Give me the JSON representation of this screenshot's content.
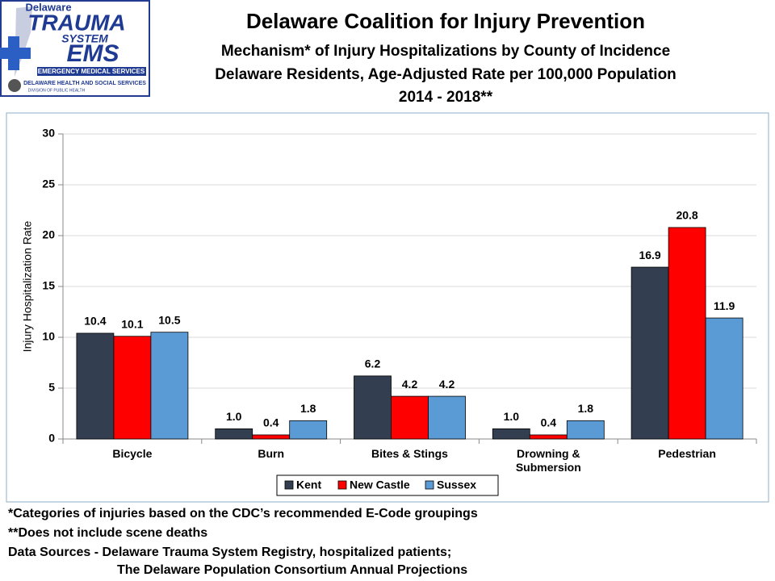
{
  "logo": {
    "lines": [
      "Delaware",
      "TRAUMA",
      "SYSTEM",
      "EMS",
      "EMERGENCY MEDICAL SERVICES",
      "DELAWARE HEALTH AND SOCIAL SERVICES",
      "DIVISION OF PUBLIC HEALTH"
    ]
  },
  "chart_data": {
    "type": "bar",
    "title": "Delaware Coalition for Injury Prevention",
    "subtitle": [
      "Mechanism* of Injury Hospitalizations by County of Incidence",
      "Delaware Residents, Age-Adjusted Rate per 100,000 Population",
      "2014 - 2018**"
    ],
    "y_label": "Injury Hospitalization Rate",
    "categories": [
      "Bicycle",
      "Burn",
      "Bites & Stings",
      "Drowning & Submersion",
      "Pedestrian"
    ],
    "series": [
      {
        "name": "Kent",
        "color": "#333f50",
        "values": [
          10.4,
          1,
          6.2,
          1,
          16.9
        ],
        "value_labels": [
          "10.4",
          "1.0",
          "6.2",
          "1.0",
          "16.9"
        ]
      },
      {
        "name": "New Castle",
        "color": "#ff0000",
        "values": [
          10.1,
          0.4,
          4.2,
          0.4,
          20.8
        ],
        "value_labels": [
          "10.1",
          "0.4",
          "4.2",
          "0.4",
          "20.8"
        ]
      },
      {
        "name": "Sussex",
        "color": "#5b9bd5",
        "values": [
          10.5,
          1.8,
          4.2,
          1.8,
          11.9
        ],
        "value_labels": [
          "10.5",
          "1.8",
          "4.2",
          "1.8",
          "11.9"
        ]
      }
    ],
    "ylim": [
      0,
      30
    ],
    "yticks": [
      0,
      5,
      10,
      15,
      20,
      25,
      30
    ],
    "grid": true,
    "legend": "bottom"
  },
  "footnotes": [
    "*Categories of injuries based on the CDC’s recommended E-Code groupings",
    "**Does not include scene deaths",
    "Data Sources - Delaware Trauma System Registry, hospitalized patients;",
    "The Delaware Population Consortium Annual Projections"
  ]
}
